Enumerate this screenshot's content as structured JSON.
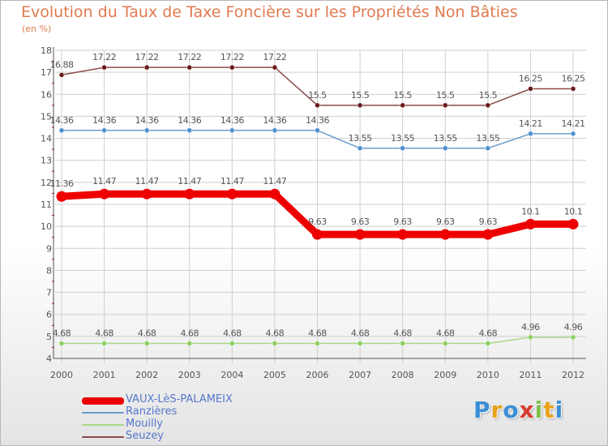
{
  "title": "Evolution du Taux de Taxe Foncière sur les Propriétés Non Bâties",
  "unit_label": "(en %)",
  "logo_text": "Proxiti",
  "colors": {
    "title": "#e07a4f",
    "axis": "#555555",
    "grid": "#cfcfcf",
    "tick_red": "#cc0000",
    "label_text": "#555555",
    "legend_text": "#5577cc"
  },
  "chart_data": {
    "type": "line",
    "x": [
      "2000",
      "2001",
      "2002",
      "2003",
      "2004",
      "2005",
      "2006",
      "2007",
      "2008",
      "2009",
      "2010",
      "2011",
      "2012"
    ],
    "ylim": [
      4,
      18
    ],
    "yticks": [
      4,
      5,
      6,
      7,
      8,
      9,
      10,
      11,
      12,
      13,
      14,
      15,
      16,
      17,
      18
    ],
    "grid": true,
    "legend_position": "bottom-left",
    "series": [
      {
        "name": "VAUX-LèS-PALAMEIX",
        "color": "#ee0000",
        "marker_color": "#ee0000",
        "emphasis": true,
        "values": [
          11.36,
          11.47,
          11.47,
          11.47,
          11.47,
          11.47,
          9.63,
          9.63,
          9.63,
          9.63,
          9.63,
          10.1,
          10.1
        ],
        "labels": [
          "11.36",
          "11.47",
          "11.47",
          "11.47",
          "11.47",
          "11.47",
          "9.63",
          "9.63",
          "9.63",
          "9.63",
          "9.63",
          "10.1",
          "10.1"
        ]
      },
      {
        "name": "Ranzières",
        "color": "#6b9cc9",
        "marker_color": "#4f8fcf",
        "emphasis": false,
        "values": [
          14.36,
          14.36,
          14.36,
          14.36,
          14.36,
          14.36,
          14.36,
          13.55,
          13.55,
          13.55,
          13.55,
          14.21,
          14.21
        ],
        "labels": [
          "14.36",
          "14.36",
          "14.36",
          "14.36",
          "14.36",
          "14.36",
          "14.36",
          "13.55",
          "13.55",
          "13.55",
          "13.55",
          "14.21",
          "14.21"
        ]
      },
      {
        "name": "Mouilly",
        "color": "#a8d88a",
        "marker_color": "#8cd05a",
        "emphasis": false,
        "values": [
          4.68,
          4.68,
          4.68,
          4.68,
          4.68,
          4.68,
          4.68,
          4.68,
          4.68,
          4.68,
          4.68,
          4.96,
          4.96
        ],
        "labels": [
          "4.68",
          "4.68",
          "4.68",
          "4.68",
          "4.68",
          "4.68",
          "4.68",
          "4.68",
          "4.68",
          "4.68",
          "4.68",
          "4.96",
          "4.96"
        ]
      },
      {
        "name": "Seuzey",
        "color": "#8b4a4a",
        "marker_color": "#6b1a1a",
        "emphasis": false,
        "values": [
          16.88,
          17.22,
          17.22,
          17.22,
          17.22,
          17.22,
          15.5,
          15.5,
          15.5,
          15.5,
          15.5,
          16.25,
          16.25
        ],
        "labels": [
          "16.88",
          "17.22",
          "17.22",
          "17.22",
          "17.22",
          "17.22",
          "15.5",
          "15.5",
          "15.5",
          "15.5",
          "15.5",
          "16.25",
          "16.25"
        ]
      }
    ]
  }
}
